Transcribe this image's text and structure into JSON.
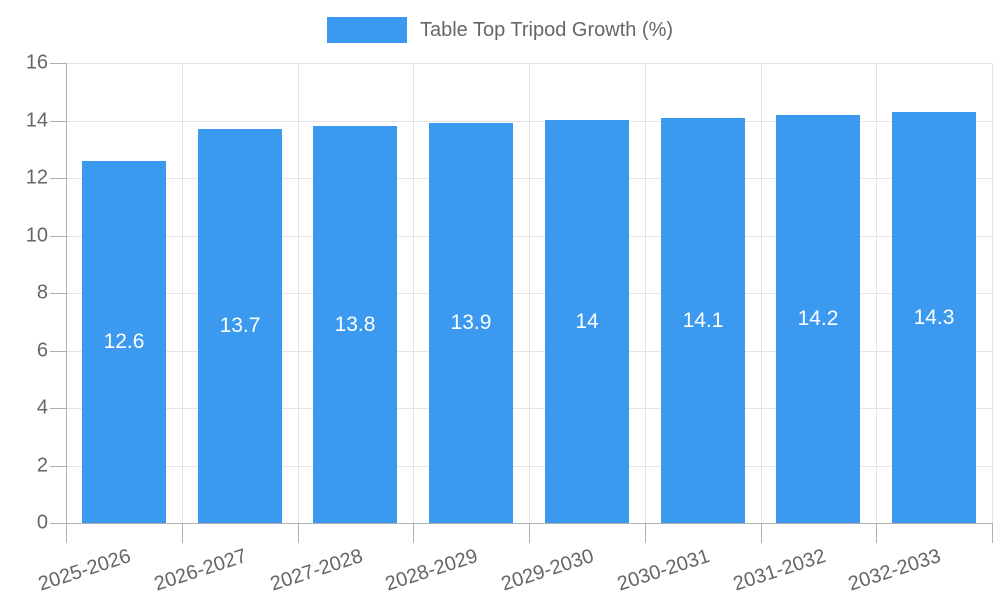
{
  "chart_data": {
    "type": "bar",
    "title": "Table Top Tripod Growth (%)",
    "categories": [
      "2025-2026",
      "2026-2027",
      "2027-2028",
      "2028-2029",
      "2029-2030",
      "2030-2031",
      "2031-2032",
      "2032-2033"
    ],
    "values": [
      12.6,
      13.7,
      13.8,
      13.9,
      14,
      14.1,
      14.2,
      14.3
    ],
    "value_labels": [
      "12.6",
      "13.7",
      "13.8",
      "13.9",
      "14",
      "14.1",
      "14.2",
      "14.3"
    ],
    "xlabel": "",
    "ylabel": "",
    "ylim": [
      0,
      16
    ],
    "ytick_labels": [
      "0",
      "2",
      "4",
      "6",
      "8",
      "10",
      "12",
      "14",
      "16"
    ],
    "yticks": [
      0,
      2,
      4,
      6,
      8,
      10,
      12,
      14,
      16
    ],
    "grid": true,
    "legend_position": "top",
    "x_label_rotation_deg": -18,
    "colors": {
      "bar": "#3B99F0",
      "value_label": "#FFFFFF",
      "axis_text": "#666666",
      "grid_line": "#E5E5E5",
      "axis_line": "#B0B0B0"
    }
  }
}
